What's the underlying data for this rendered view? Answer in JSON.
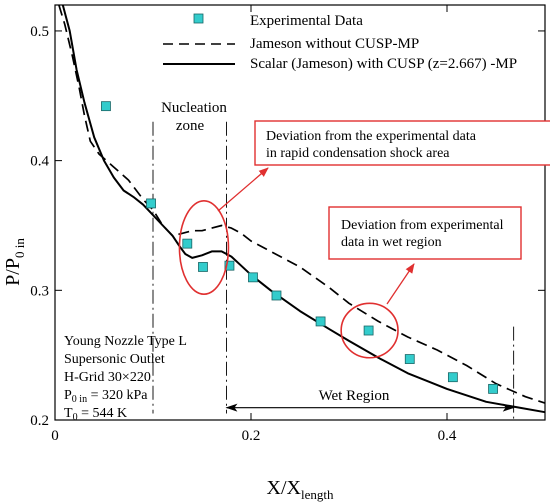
{
  "chart_data": {
    "type": "line",
    "xlabel": {
      "main": "X/X",
      "sub": "length"
    },
    "ylabel": {
      "main": "P/P",
      "sub": "0 in"
    },
    "xlim": [
      0,
      0.5
    ],
    "ylim": [
      0.2,
      0.52
    ],
    "x_ticks": [
      0,
      0.2,
      0.4
    ],
    "x_tick_labels": [
      "0",
      "0.2",
      "0.4"
    ],
    "y_ticks": [
      0.2,
      0.3,
      0.4,
      0.5
    ],
    "y_tick_labels": [
      "0.2",
      "0.3",
      "0.4",
      "0.5"
    ],
    "grid": false,
    "legend_position": "top-right",
    "series": [
      {
        "name": "Experimental Data",
        "kind": "markers",
        "color": "#33cccc",
        "x": [
          0.052,
          0.098,
          0.135,
          0.151,
          0.178,
          0.202,
          0.226,
          0.271,
          0.32,
          0.362,
          0.406,
          0.447
        ],
        "y": [
          0.442,
          0.367,
          0.336,
          0.318,
          0.319,
          0.31,
          0.296,
          0.276,
          0.269,
          0.247,
          0.233,
          0.224
        ]
      },
      {
        "name": "Jameson without CUSP-MP",
        "kind": "dashed",
        "color": "#000000",
        "x": [
          0.004,
          0.01,
          0.018,
          0.025,
          0.03,
          0.036,
          0.045,
          0.06,
          0.075,
          0.09,
          0.1,
          0.11,
          0.12,
          0.13,
          0.14,
          0.15,
          0.16,
          0.17,
          0.18,
          0.19,
          0.2,
          0.22,
          0.25,
          0.28,
          0.3,
          0.33,
          0.36,
          0.39,
          0.42,
          0.45,
          0.48,
          0.5
        ],
        "y": [
          0.52,
          0.505,
          0.48,
          0.455,
          0.435,
          0.415,
          0.405,
          0.395,
          0.385,
          0.37,
          0.362,
          0.35,
          0.342,
          0.344,
          0.346,
          0.346,
          0.348,
          0.35,
          0.348,
          0.344,
          0.338,
          0.33,
          0.318,
          0.302,
          0.29,
          0.276,
          0.264,
          0.254,
          0.242,
          0.228,
          0.218,
          0.213
        ]
      },
      {
        "name": "Scalar (Jameson) with CUSP (z=2.667) -MP",
        "kind": "solid",
        "color": "#000000",
        "x": [
          0.008,
          0.015,
          0.022,
          0.03,
          0.04,
          0.05,
          0.06,
          0.07,
          0.08,
          0.09,
          0.1,
          0.11,
          0.12,
          0.127,
          0.133,
          0.14,
          0.15,
          0.16,
          0.17,
          0.18,
          0.19,
          0.2,
          0.22,
          0.25,
          0.28,
          0.3,
          0.33,
          0.36,
          0.4,
          0.44,
          0.47,
          0.5
        ],
        "y": [
          0.52,
          0.5,
          0.47,
          0.445,
          0.418,
          0.4,
          0.387,
          0.377,
          0.372,
          0.366,
          0.358,
          0.35,
          0.342,
          0.334,
          0.328,
          0.325,
          0.327,
          0.33,
          0.33,
          0.326,
          0.319,
          0.312,
          0.3,
          0.284,
          0.27,
          0.261,
          0.248,
          0.236,
          0.224,
          0.214,
          0.21,
          0.206
        ]
      }
    ],
    "nucleation_lines_x": [
      0.1,
      0.175
    ],
    "wet_region_line_x": 0.468,
    "wet_region_arrow_x": [
      0.175,
      0.468
    ],
    "annotations": {
      "nucleation_zone": [
        "Nucleation",
        "zone"
      ],
      "wet_region": "Wet Region",
      "box1": [
        "Deviation from the experimental data",
        "in rapid condensation shock area"
      ],
      "box2": [
        "Deviation from experimental",
        "data in wet region"
      ],
      "info": {
        "line1": "Young Nozzle Type L",
        "line2": "Supersonic Outlet",
        "line3": "H-Grid 30×220",
        "p_main": "P",
        "p_sub": "0 in",
        "p_rest": " = 320 kPa",
        "t_main": "T",
        "t_sub": "0",
        "t_rest": " = 544 K"
      }
    },
    "ellipses": [
      {
        "cx": 0.152,
        "cy": 0.333,
        "rx": 0.025,
        "ry": 0.036
      },
      {
        "cx": 0.321,
        "cy": 0.269,
        "rx": 0.029,
        "ry": 0.021
      }
    ],
    "highlight_color": "#e03030"
  }
}
